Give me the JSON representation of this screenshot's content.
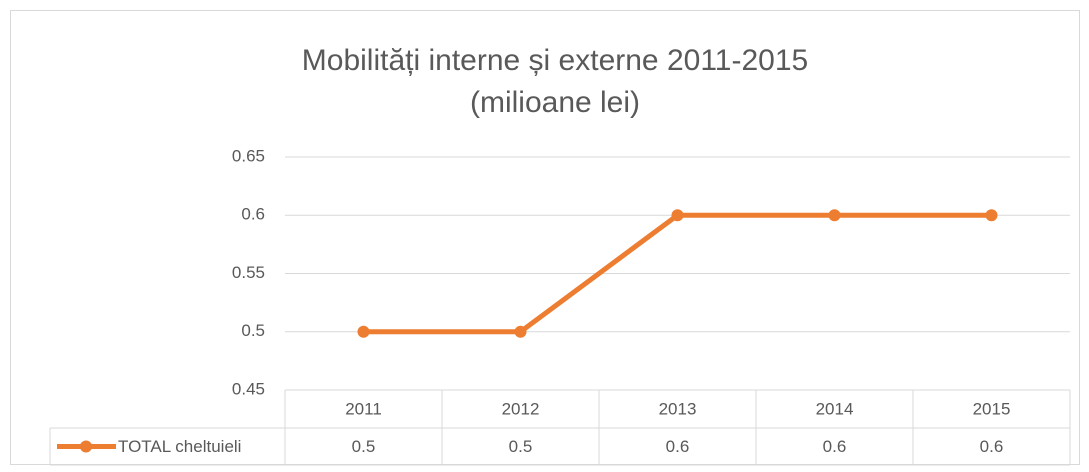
{
  "chart_data": {
    "type": "line",
    "title": "Mobilități interne și externe 2011-2015",
    "subtitle": "(milioane lei)",
    "categories": [
      "2011",
      "2012",
      "2013",
      "2014",
      "2015"
    ],
    "series": [
      {
        "name": "TOTAL cheltuieli",
        "color": "#ed7d31",
        "values": [
          0.5,
          0.5,
          0.6,
          0.6,
          0.6
        ]
      }
    ],
    "ylim": [
      0.45,
      0.65
    ],
    "yticks": [
      0.45,
      0.5,
      0.55,
      0.6,
      0.65
    ],
    "grid": true,
    "data_table": true
  }
}
